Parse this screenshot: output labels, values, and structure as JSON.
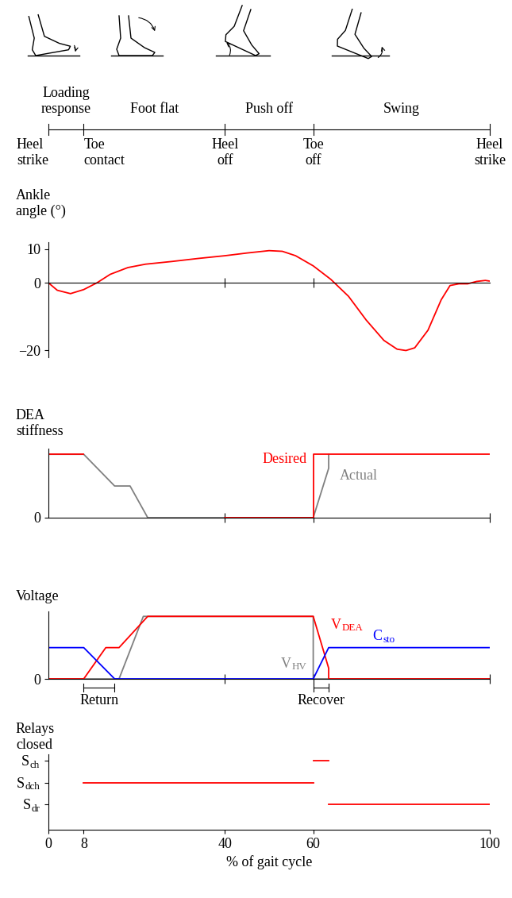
{
  "gait_phases": {
    "xlim": [
      0,
      100
    ],
    "phases": [
      {
        "label": "Loading\nresponse",
        "span": [
          0,
          8
        ]
      },
      {
        "label": "Foot flat",
        "span": [
          8,
          40
        ]
      },
      {
        "label": "Push off",
        "span": [
          40,
          60
        ]
      },
      {
        "label": "Swing",
        "span": [
          60,
          100
        ]
      }
    ],
    "events": [
      {
        "x": 0,
        "label": "Heel\nstrike"
      },
      {
        "x": 8,
        "label": "Toe\ncontact"
      },
      {
        "x": 40,
        "label": "Heel\noff"
      },
      {
        "x": 60,
        "label": "Toe\noff"
      },
      {
        "x": 100,
        "label": "Heel\nstrike"
      }
    ]
  },
  "chart_data": [
    {
      "type": "line",
      "ylabel": "Ankle\nangle (°)",
      "xlim": [
        0,
        100
      ],
      "ylim": [
        -22,
        12
      ],
      "xticks": [
        40,
        60
      ],
      "yticks": [
        10,
        0,
        {
          "value": -20,
          "label": "−20"
        }
      ],
      "tick_labels": "y",
      "series": [
        {
          "color": "red",
          "x": [
            0,
            2,
            5,
            8,
            11,
            14,
            18,
            22,
            28,
            34,
            40,
            45,
            50,
            53,
            56,
            60,
            64,
            68,
            72,
            76,
            79,
            81,
            83,
            86,
            89,
            91,
            93,
            95,
            97,
            99,
            100
          ],
          "values": [
            0,
            -2.2,
            -3.2,
            -2,
            0,
            2.5,
            4.5,
            5.5,
            6.3,
            7.2,
            8,
            8.8,
            9.5,
            9.3,
            8,
            5,
            1,
            -4,
            -11,
            -17,
            -19.6,
            -20,
            -19.2,
            -14,
            -5,
            -0.8,
            -0.3,
            -0.3,
            0.4,
            0.7,
            0.5
          ]
        }
      ]
    },
    {
      "type": "line",
      "ylabel": "DEA\nstiffness",
      "xlim": [
        0,
        100
      ],
      "ylim": [
        0,
        1.09
      ],
      "xticks": [
        40,
        60,
        100
      ],
      "yticks": [
        0
      ],
      "tick_labels": "y",
      "series": [
        {
          "name": "Actual",
          "color": "#808080",
          "x": [
            0,
            8,
            15,
            18.5,
            22.5,
            60,
            63.5,
            63.5
          ],
          "values": [
            1,
            1,
            0.5,
            0.5,
            0,
            0,
            0.78,
            1
          ]
        },
        {
          "name": "Desired",
          "color": "red",
          "x": [
            0,
            8,
            8,
            40,
            60,
            60,
            100
          ],
          "values": [
            1,
            1,
            null,
            0,
            0,
            1,
            1
          ]
        }
      ]
    },
    {
      "type": "line",
      "ylabel": "Voltage",
      "xlim": [
        0,
        100
      ],
      "ylim": [
        0,
        1.08
      ],
      "xticks": [
        40,
        60,
        100
      ],
      "yticks": [
        0
      ],
      "tick_labels": "y",
      "series": [
        {
          "name": {
            "main": "V",
            "sub": "HV"
          },
          "color": "#808080",
          "x": [
            0,
            16,
            21.5,
            60,
            60,
            100
          ],
          "values": [
            0,
            0,
            1,
            1,
            0,
            0
          ]
        },
        {
          "name": {
            "main": "V",
            "sub": "DEA"
          },
          "color": "red",
          "x": [
            0,
            8,
            13,
            16,
            22.5,
            60,
            63.5,
            63.5,
            100
          ],
          "values": [
            0,
            0,
            0.5,
            0.5,
            1,
            1,
            0.17,
            0,
            0
          ]
        },
        {
          "name": {
            "main": "C",
            "sub": "sto"
          },
          "color": "blue",
          "x": [
            0,
            8,
            15,
            60,
            63.5,
            100
          ],
          "values": [
            0.5,
            0.5,
            0,
            0,
            0.5,
            0.5
          ]
        }
      ],
      "intervals": [
        {
          "label": "Return",
          "span": [
            8,
            15
          ]
        },
        {
          "label": "Recover",
          "span": [
            60,
            63.5
          ]
        }
      ]
    },
    {
      "type": "line",
      "ylabel": "Relays\nclosed",
      "xlabel": "% of gait cycle",
      "xlim": [
        0,
        100
      ],
      "xticks": [
        0,
        8,
        40,
        60,
        100
      ],
      "color": "red",
      "y_categories": [
        {
          "main": "S",
          "sub": "dr"
        },
        {
          "main": "S",
          "sub": "dch"
        },
        {
          "main": "S",
          "sub": "ch"
        }
      ],
      "segments": [
        [
          63.5,
          100
        ],
        [
          8,
          60
        ],
        [
          60,
          63.5
        ]
      ]
    }
  ]
}
